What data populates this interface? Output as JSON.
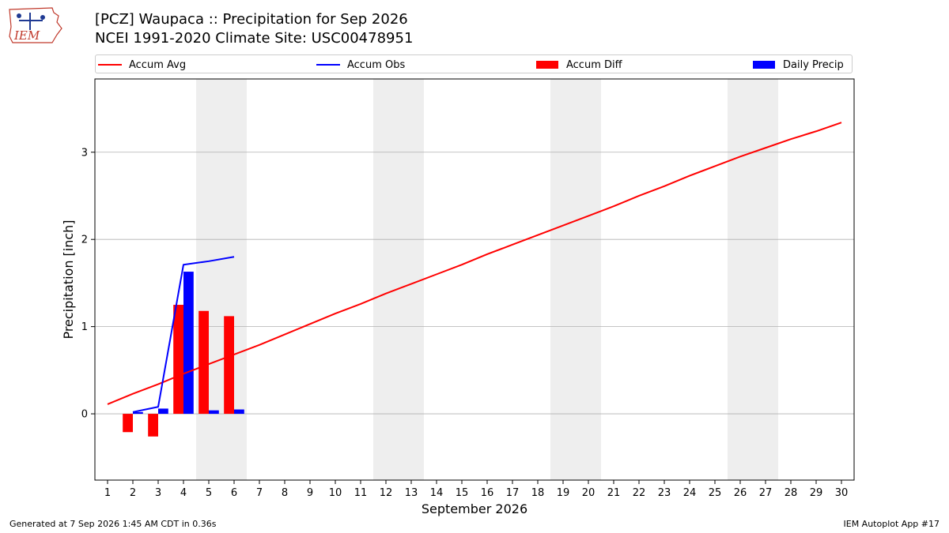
{
  "header": {
    "title_line1": "[PCZ] Waupaca :: Precipitation for Sep 2026",
    "title_line2": "NCEI 1991-2020 Climate Site: USC00478951",
    "logo_text": "IEM"
  },
  "legend": {
    "accum_avg": "Accum Avg",
    "accum_obs": "Accum Obs",
    "accum_diff": "Accum Diff",
    "daily_precip": "Daily Precip"
  },
  "footer": {
    "left": "Generated at 7 Sep 2026 1:45 AM CDT in 0.36s",
    "right": "IEM Autoplot App #17"
  },
  "colors": {
    "avg": "#ff0000",
    "obs": "#0000ff",
    "diff": "#ff0000",
    "daily": "#0000ff",
    "weekend_band": "#eeeeee",
    "grid": "#b0b0b0"
  },
  "chart_data": {
    "type": "bar",
    "xlabel": "September 2026",
    "ylabel": "Precipitation [inch]",
    "xlim": [
      0.5,
      30.5
    ],
    "ylim": [
      -0.76,
      3.84
    ],
    "grid": true,
    "legend_position": "top",
    "days": [
      1,
      2,
      3,
      4,
      5,
      6,
      7,
      8,
      9,
      10,
      11,
      12,
      13,
      14,
      15,
      16,
      17,
      18,
      19,
      20,
      21,
      22,
      23,
      24,
      25,
      26,
      27,
      28,
      29,
      30
    ],
    "yticks": [
      0,
      1,
      2,
      3
    ],
    "weekend_bands": [
      [
        4.5,
        6.5
      ],
      [
        11.5,
        13.5
      ],
      [
        18.5,
        20.5
      ],
      [
        25.5,
        27.5
      ]
    ],
    "series": [
      {
        "name": "Accum Avg",
        "kind": "line",
        "x": [
          1,
          2,
          3,
          4,
          5,
          6,
          7,
          8,
          9,
          10,
          11,
          12,
          13,
          14,
          15,
          16,
          17,
          18,
          19,
          20,
          21,
          22,
          23,
          24,
          25,
          26,
          27,
          28,
          29,
          30
        ],
        "values": [
          0.11,
          0.23,
          0.34,
          0.46,
          0.57,
          0.68,
          0.79,
          0.91,
          1.03,
          1.15,
          1.26,
          1.38,
          1.49,
          1.6,
          1.71,
          1.83,
          1.94,
          2.05,
          2.16,
          2.27,
          2.38,
          2.5,
          2.61,
          2.73,
          2.84,
          2.95,
          3.05,
          3.15,
          3.24,
          3.34
        ]
      },
      {
        "name": "Accum Obs",
        "kind": "line",
        "x": [
          2,
          3,
          4,
          5,
          6
        ],
        "values": [
          0.02,
          0.08,
          1.71,
          1.75,
          1.8
        ]
      },
      {
        "name": "Accum Diff",
        "kind": "bar",
        "x": [
          2,
          3,
          4,
          5,
          6
        ],
        "values": [
          -0.21,
          -0.26,
          1.25,
          1.18,
          1.12
        ]
      },
      {
        "name": "Daily Precip",
        "kind": "bar",
        "x": [
          2,
          3,
          4,
          5,
          6
        ],
        "values": [
          0.02,
          0.06,
          1.63,
          0.04,
          0.05
        ]
      }
    ]
  }
}
